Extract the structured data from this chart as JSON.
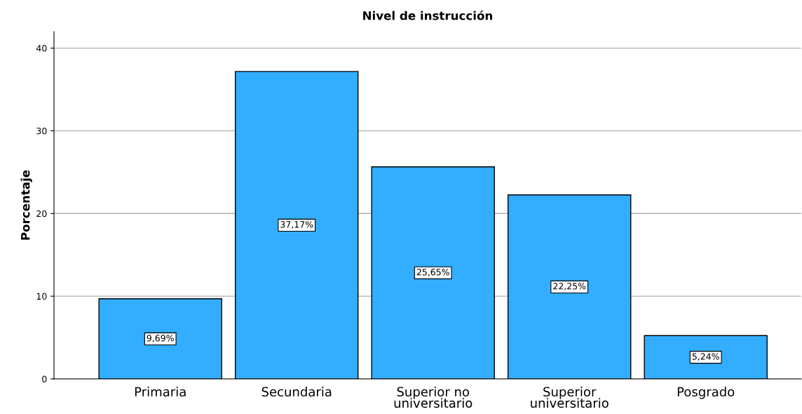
{
  "chart_data": {
    "type": "bar",
    "title": "Nivel de instrucción",
    "ylabel": "Porcentaje",
    "categories": [
      "Primaria",
      "Secundaria",
      "Superior no\nuniversitario",
      "Superior\nuniversitario",
      "Posgrado"
    ],
    "values": [
      9.69,
      37.17,
      25.65,
      22.25,
      5.24
    ],
    "value_labels": [
      "9,69%",
      "37,17%",
      "25,65%",
      "22,25%",
      "5,24%"
    ],
    "color": "#33adff",
    "ylim": [
      0,
      42
    ],
    "yticks": [
      0,
      10,
      20,
      30,
      40
    ],
    "grid": "y",
    "legend": false
  }
}
